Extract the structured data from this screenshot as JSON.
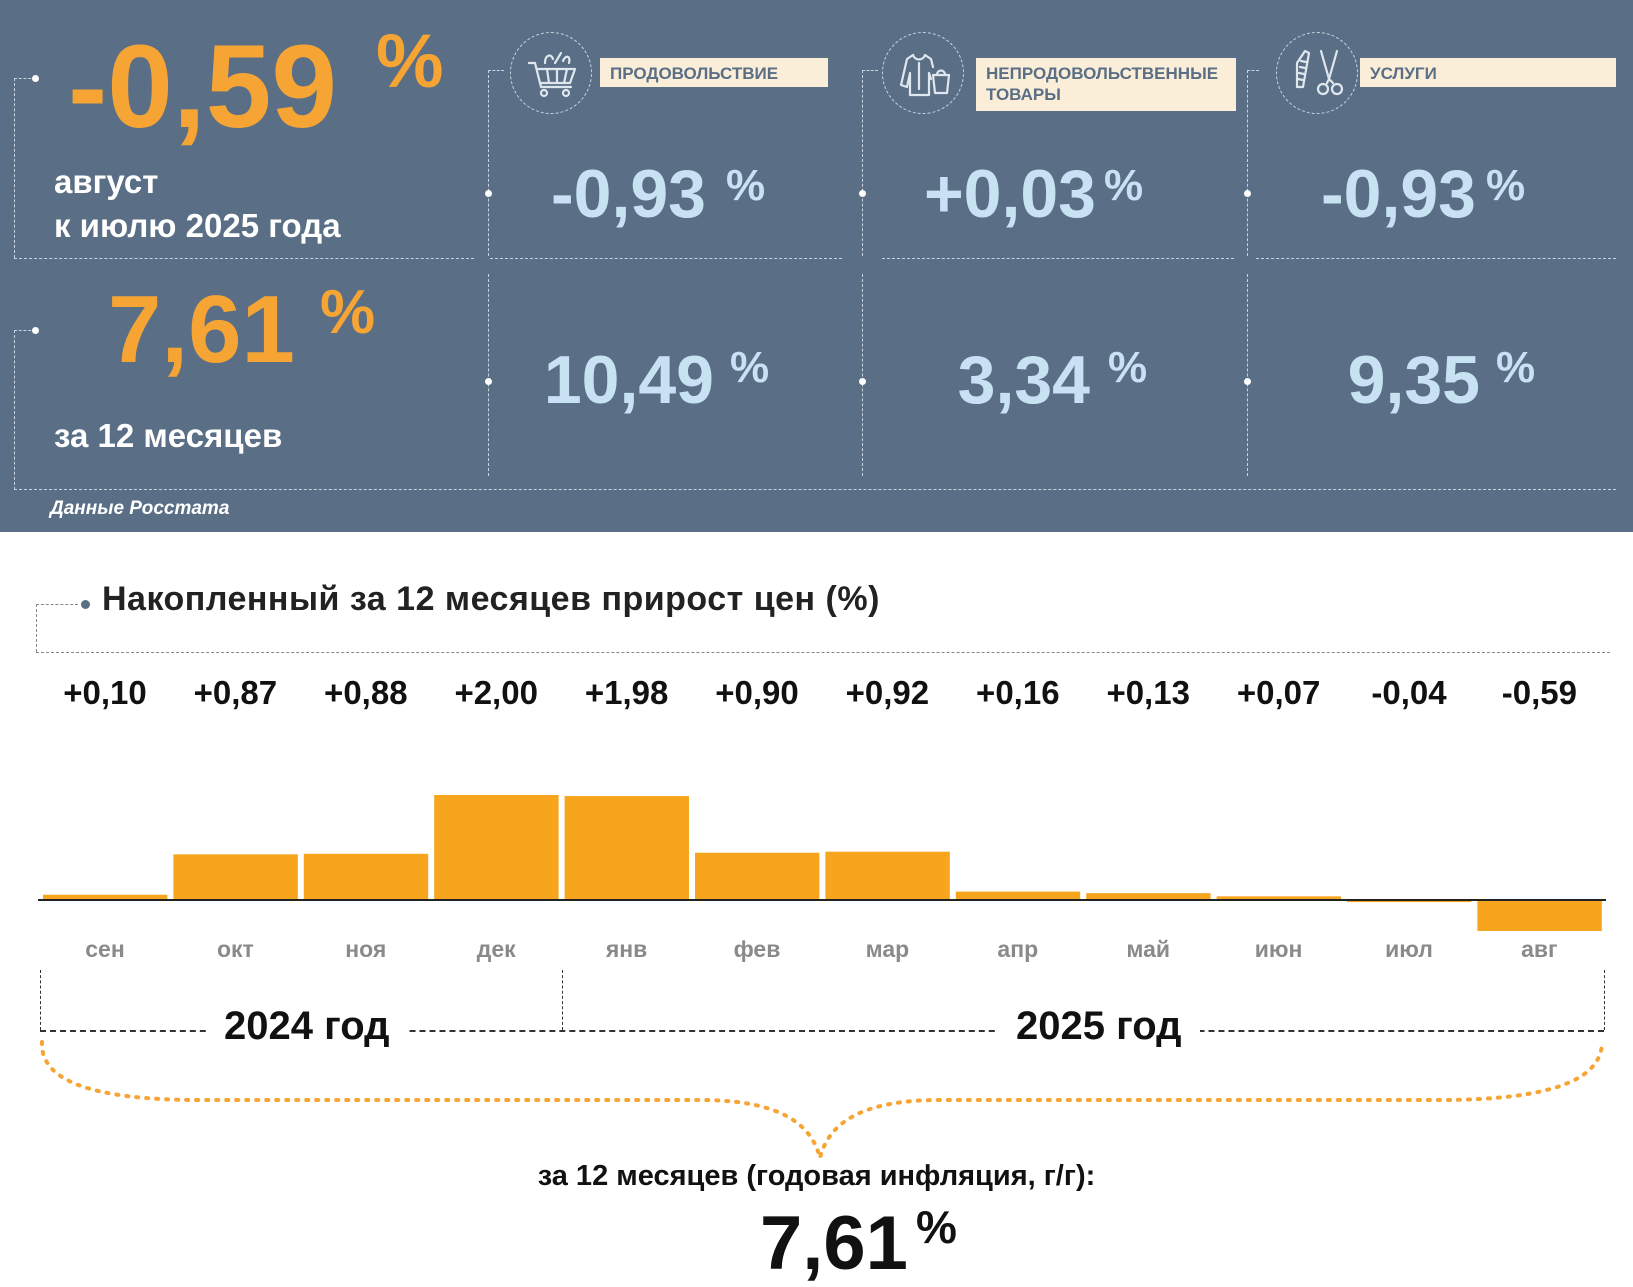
{
  "summary": {
    "monthly": {
      "value": "-0,59",
      "unit": "%",
      "line1": "август",
      "line2": "к июлю 2025 года"
    },
    "yearly": {
      "value": "7,61",
      "unit": "%",
      "label": "за 12 месяцев"
    },
    "source": "Данные Росстата"
  },
  "categories": [
    {
      "label": "ПРОДОВОЛЬСТВИЕ",
      "icon": "shopping-basket-icon",
      "monthly": "-0,93",
      "yearly": "10,49",
      "unit": "%"
    },
    {
      "label_line1": "НЕПРОДОВОЛЬСТВЕННЫЕ",
      "label_line2": "ТОВАРЫ",
      "icon": "clothing-icon",
      "monthly": "+0,03",
      "yearly": "3,34",
      "unit": "%"
    },
    {
      "label": "УСЛУГИ",
      "icon": "comb-scissors-icon",
      "monthly": "-0,93",
      "yearly": "9,35",
      "unit": "%"
    }
  ],
  "chart_data": {
    "type": "bar",
    "title": "Накопленный за 12 месяцев прирост цен (%)",
    "categories": [
      "сен",
      "окт",
      "ноя",
      "дек",
      "янв",
      "фев",
      "мар",
      "апр",
      "май",
      "июн",
      "июл",
      "авг"
    ],
    "values": [
      0.1,
      0.87,
      0.88,
      2.0,
      1.98,
      0.9,
      0.92,
      0.16,
      0.13,
      0.07,
      -0.04,
      -0.59
    ],
    "data_labels": [
      "+0,10",
      "+0,87",
      "+0,88",
      "+2,00",
      "+1,98",
      "+0,90",
      "+0,92",
      "+0,16",
      "+0,13",
      "+0,07",
      "-0,04",
      "-0,59"
    ],
    "groups": [
      {
        "label": "2024 год",
        "months": [
          "сен",
          "окт",
          "ноя",
          "дек"
        ]
      },
      {
        "label": "2025 год",
        "months": [
          "янв",
          "фев",
          "мар",
          "апр",
          "май",
          "июн",
          "июл",
          "авг"
        ]
      }
    ],
    "total_caption": "за 12 месяцев (годовая инфляция, г/г):",
    "total_value": "7,61",
    "total_unit": "%"
  },
  "colors": {
    "panel_bg": "#5a6f86",
    "accent_orange": "#f6a534",
    "value_blue": "#c8e2f3",
    "label_box": "#fbeed9",
    "bar": "#f7a51d"
  }
}
